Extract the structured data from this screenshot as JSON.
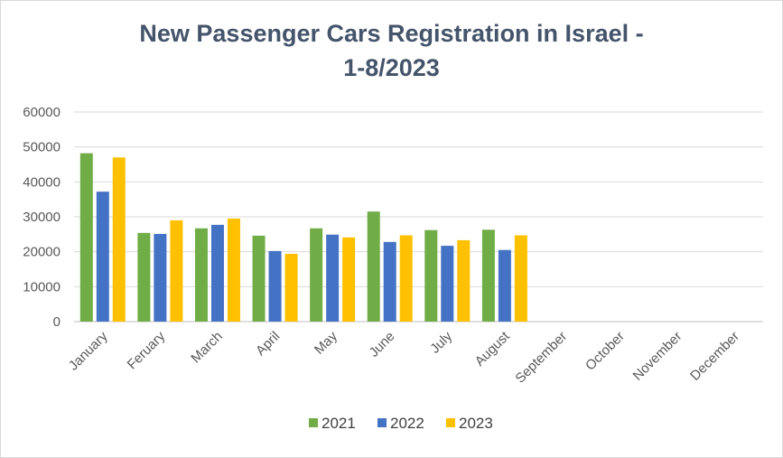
{
  "chart_data": {
    "type": "bar",
    "title_lines": [
      "New Passenger Cars Registration in Israel -",
      "1-8/2023"
    ],
    "xlabel": "",
    "ylabel": "",
    "categories": [
      "January",
      "Feruary",
      "March",
      "April",
      "May",
      "June",
      "July",
      "August",
      "September",
      "October",
      "November",
      "December"
    ],
    "series": [
      {
        "name": "2021",
        "values": [
          48200,
          25400,
          26700,
          24600,
          26700,
          31500,
          26200,
          26300,
          null,
          null,
          null,
          null
        ],
        "color": "#70ad47"
      },
      {
        "name": "2022",
        "values": [
          37200,
          25100,
          27700,
          20200,
          24900,
          22800,
          21700,
          20500,
          null,
          null,
          null,
          null
        ],
        "color": "#4472c4"
      },
      {
        "name": "2023",
        "values": [
          47000,
          29000,
          29500,
          19400,
          24100,
          24700,
          23300,
          24700,
          null,
          null,
          null,
          null
        ],
        "color": "#ffc000"
      }
    ],
    "ylim": [
      0,
      60000
    ],
    "yticks": [
      "60000",
      "50000",
      "40000",
      "30000",
      "20000",
      "10000",
      "0"
    ],
    "grid": true,
    "legend_position": "bottom"
  }
}
